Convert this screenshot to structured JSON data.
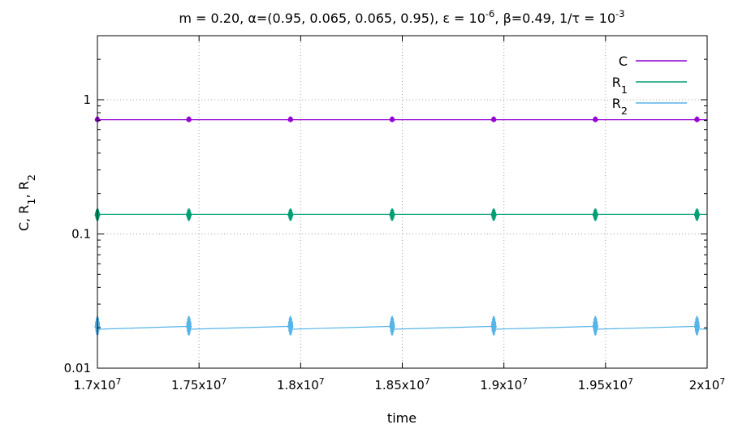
{
  "chart_data": {
    "type": "line",
    "title": {
      "parts": [
        {
          "t": "m = 0.20, α=(0.95, 0.065, 0.065, 0.95), ε = 10"
        },
        {
          "t": "-6",
          "sup": true
        },
        {
          "t": ", β=0.49, 1/τ = 10"
        },
        {
          "t": "-3",
          "sup": true
        }
      ]
    },
    "xlabel": "time",
    "ylabel": {
      "parts": [
        {
          "t": "C, R"
        },
        {
          "t": "1",
          "sub": true
        },
        {
          "t": ", R"
        },
        {
          "t": "2",
          "sub": true
        }
      ]
    },
    "xlim": [
      17000000,
      20000000
    ],
    "ylim": [
      0.01,
      3
    ],
    "yscale": "log",
    "grid": true,
    "legend_position": "top-right",
    "x_ticks": [
      {
        "value": 17000000,
        "base": "1.7x10",
        "exp": "7"
      },
      {
        "value": 17500000,
        "base": "1.75x10",
        "exp": "7"
      },
      {
        "value": 18000000,
        "base": "1.8x10",
        "exp": "7"
      },
      {
        "value": 18500000,
        "base": "1.85x10",
        "exp": "7"
      },
      {
        "value": 19000000,
        "base": "1.9x10",
        "exp": "7"
      },
      {
        "value": 19500000,
        "base": "1.95x10",
        "exp": "7"
      },
      {
        "value": 20000000,
        "base": "2x10",
        "exp": "7"
      }
    ],
    "y_ticks": [
      {
        "value": 0.01,
        "label": "0.01"
      },
      {
        "value": 0.1,
        "label": "0.1"
      },
      {
        "value": 1,
        "label": "1"
      }
    ],
    "spike_times": [
      17450000,
      17950000,
      18450000,
      18950000,
      19450000,
      19950000
    ],
    "series": [
      {
        "name": "C",
        "color": "#9400d3",
        "baseline": [
          0.71,
          0.71
        ],
        "spike_range": [
          0.68,
          0.75
        ]
      },
      {
        "name": "R",
        "subscript": "1",
        "color": "#009e73",
        "baseline": [
          0.14,
          0.14
        ],
        "spike_range": [
          0.125,
          0.155
        ]
      },
      {
        "name": "R",
        "subscript": "2",
        "color": "#56b4e9",
        "baseline": [
          0.0195,
          0.0205
        ],
        "spike_range": [
          0.0175,
          0.0245
        ]
      }
    ]
  }
}
